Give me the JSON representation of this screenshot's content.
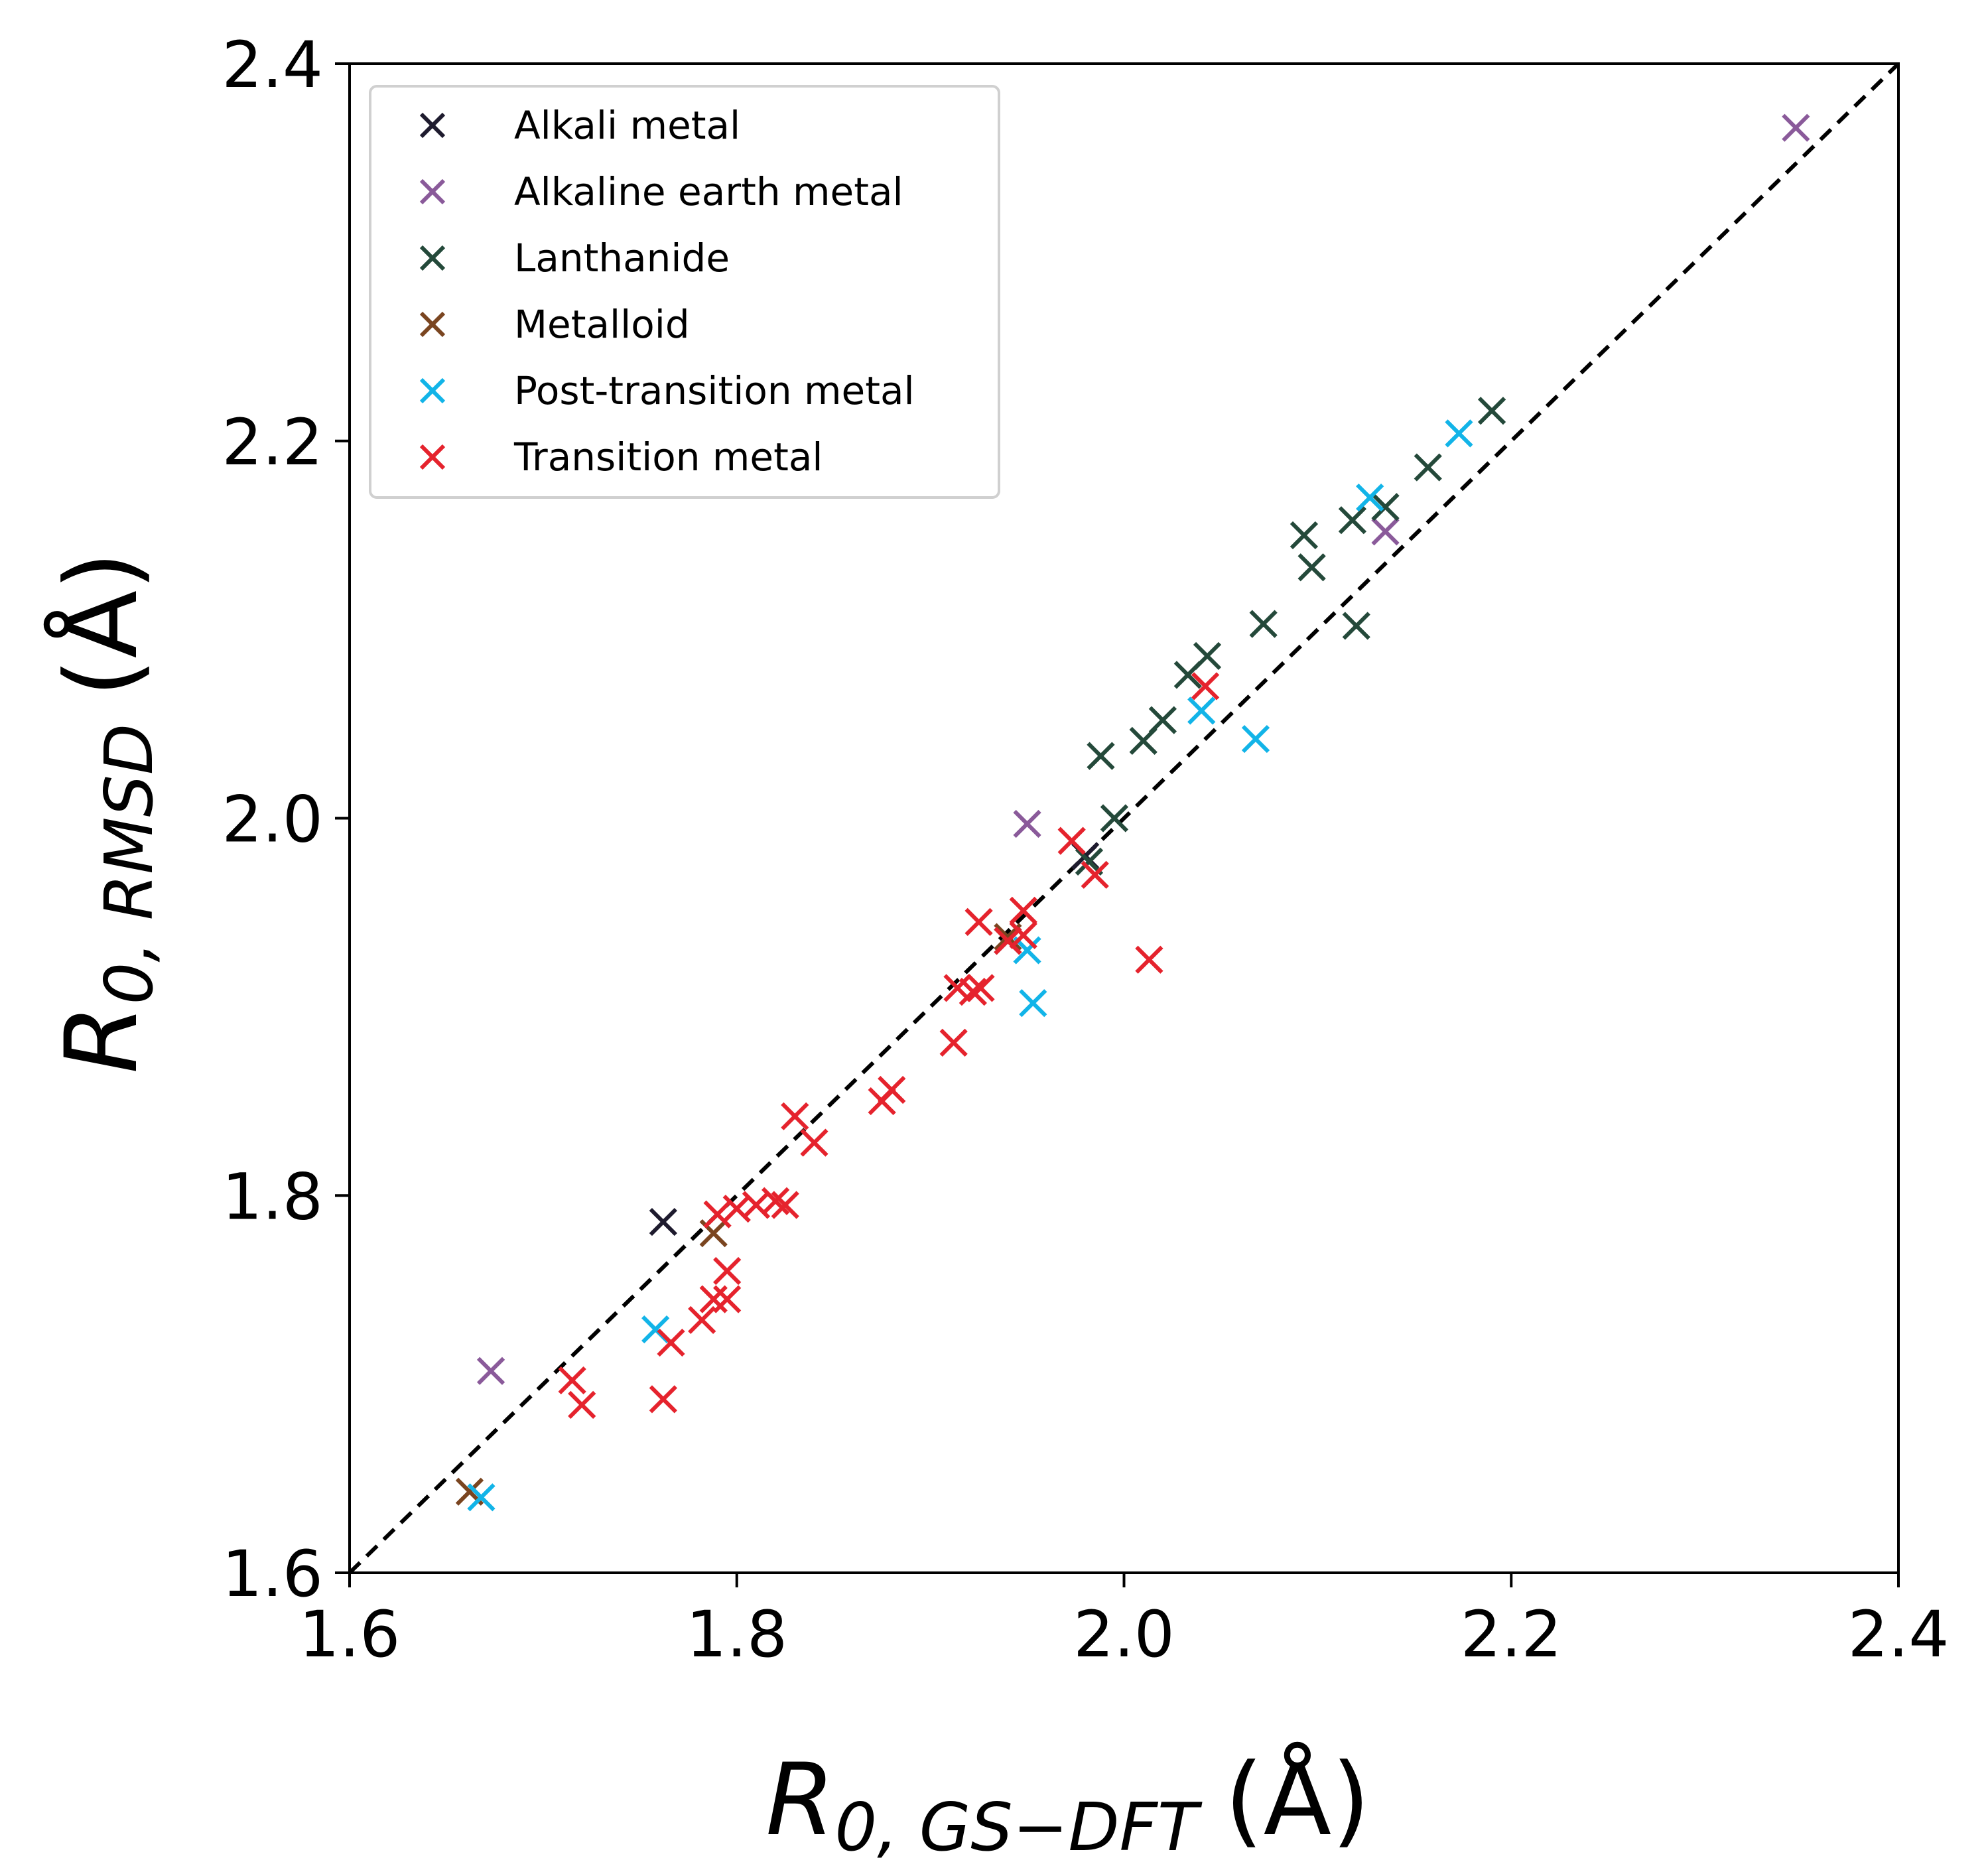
{
  "chart_data": {
    "type": "scatter",
    "xlim": [
      1.6,
      2.4
    ],
    "ylim": [
      1.6,
      2.4
    ],
    "x_ticks": [
      "1.6",
      "1.8",
      "2.0",
      "2.2",
      "2.4"
    ],
    "y_ticks": [
      "1.6",
      "1.8",
      "2.0",
      "2.2",
      "2.4"
    ],
    "xlabel": {
      "main": "R",
      "sub": "0, GS−DFT",
      "unit": "(Å)"
    },
    "ylabel": {
      "main": "R",
      "sub": "0, RMSD",
      "unit": "(Å)"
    },
    "grid": false,
    "legend_position": "top-left",
    "marker": "x",
    "reference_line": {
      "style": "dashed",
      "color": "#000000",
      "from": [
        1.6,
        1.6
      ],
      "to": [
        2.4,
        2.4
      ]
    },
    "series": [
      {
        "name": "Alkali metal",
        "color": "#1e1b2e",
        "points": [
          [
            1.762,
            1.786
          ],
          [
            1.94,
            1.935
          ],
          [
            1.98,
            1.98
          ]
        ]
      },
      {
        "name": "Alkaline earth metal",
        "color": "#8a5a9a",
        "points": [
          [
            1.673,
            1.707
          ],
          [
            1.95,
            1.997
          ],
          [
            2.135,
            2.152
          ],
          [
            2.347,
            2.366
          ]
        ]
      },
      {
        "name": "Lanthanide",
        "color": "#24493a",
        "points": [
          [
            1.988,
            2.033
          ],
          [
            1.995,
            2.0
          ],
          [
            2.01,
            2.041
          ],
          [
            2.02,
            2.052
          ],
          [
            2.033,
            2.076
          ],
          [
            2.043,
            2.086
          ],
          [
            2.072,
            2.103
          ],
          [
            2.093,
            2.15
          ],
          [
            2.097,
            2.133
          ],
          [
            2.118,
            2.158
          ],
          [
            2.12,
            2.102
          ],
          [
            2.135,
            2.165
          ],
          [
            2.157,
            2.186
          ],
          [
            2.19,
            2.216
          ],
          [
            1.982,
            1.977
          ]
        ]
      },
      {
        "name": "Metalloid",
        "color": "#7a4520",
        "points": [
          [
            1.662,
            1.643
          ],
          [
            1.788,
            1.78
          ],
          [
            1.94,
            1.937
          ]
        ]
      },
      {
        "name": "Post-transition metal",
        "color": "#12b4e8",
        "points": [
          [
            1.668,
            1.64
          ],
          [
            1.758,
            1.729
          ],
          [
            1.95,
            1.93
          ],
          [
            1.953,
            1.902
          ],
          [
            2.04,
            2.057
          ],
          [
            2.068,
            2.042
          ],
          [
            2.127,
            2.17
          ],
          [
            2.173,
            2.204
          ]
        ]
      },
      {
        "name": "Transition metal",
        "color": "#e5232d",
        "points": [
          [
            1.715,
            1.702
          ],
          [
            1.72,
            1.689
          ],
          [
            1.762,
            1.692
          ],
          [
            1.766,
            1.722
          ],
          [
            1.782,
            1.734
          ],
          [
            1.788,
            1.745
          ],
          [
            1.795,
            1.745
          ],
          [
            1.795,
            1.76
          ],
          [
            1.79,
            1.79
          ],
          [
            1.8,
            1.793
          ],
          [
            1.81,
            1.795
          ],
          [
            1.82,
            1.797
          ],
          [
            1.825,
            1.795
          ],
          [
            1.83,
            1.842
          ],
          [
            1.84,
            1.828
          ],
          [
            1.875,
            1.85
          ],
          [
            1.88,
            1.856
          ],
          [
            1.912,
            1.881
          ],
          [
            1.914,
            1.91
          ],
          [
            1.922,
            1.908
          ],
          [
            1.926,
            1.91
          ],
          [
            1.925,
            1.945
          ],
          [
            1.94,
            1.935
          ],
          [
            1.948,
            1.938
          ],
          [
            1.948,
            1.951
          ],
          [
            1.973,
            1.988
          ],
          [
            1.985,
            1.97
          ],
          [
            2.013,
            1.925
          ],
          [
            2.042,
            2.07
          ]
        ]
      }
    ]
  }
}
